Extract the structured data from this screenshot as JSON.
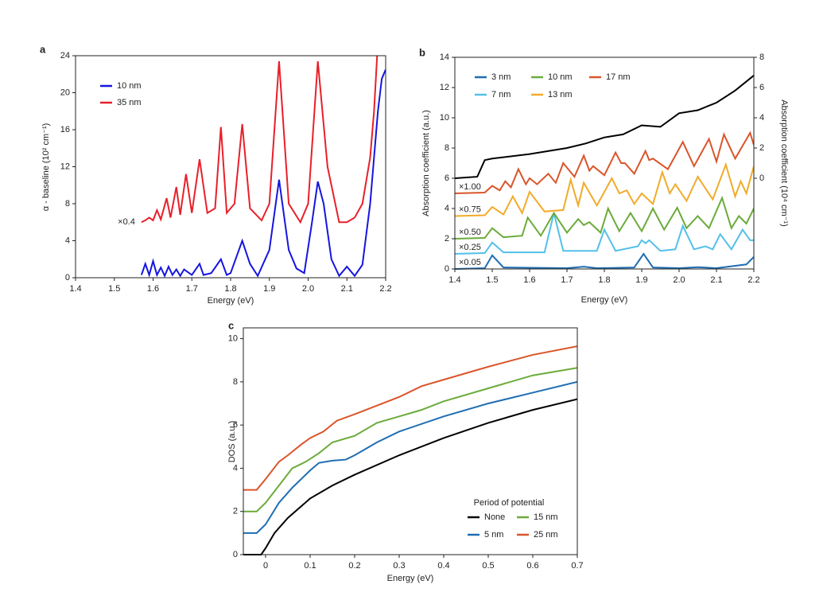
{
  "chart_data": [
    {
      "type": "line",
      "panel": "a",
      "xlabel": "Energy (eV)",
      "ylabel": "α - baseline (10² cm⁻¹)",
      "xlim": [
        1.4,
        2.2
      ],
      "xticks": [
        1.4,
        1.5,
        1.6,
        1.7,
        1.8,
        1.9,
        {
          "value": 2,
          "label": "2.0"
        },
        2.1,
        2.2
      ],
      "ylim": [
        0,
        24
      ],
      "yticks": [
        0,
        4,
        8,
        12,
        16,
        20,
        24
      ],
      "series": [
        {
          "name": "10 nm",
          "color": "#1515e0",
          "x": [
            1.57,
            1.58,
            1.59,
            1.6,
            1.61,
            1.62,
            1.63,
            1.64,
            1.65,
            1.66,
            1.67,
            1.68,
            1.7,
            1.72,
            1.73,
            1.75,
            1.775,
            1.79,
            1.8,
            1.83,
            1.85,
            1.87,
            1.9,
            1.925,
            1.95,
            1.97,
            1.99,
            2.01,
            2.025,
            2.04,
            2.06,
            2.08,
            2.1,
            2.12,
            2.14,
            2.16,
            2.18,
            2.19,
            2.2
          ],
          "values": [
            0.3,
            1.5,
            0.3,
            1.8,
            0.3,
            1.1,
            0.2,
            1.2,
            0.3,
            0.9,
            0.2,
            0.9,
            0.3,
            1.5,
            0.3,
            0.5,
            2,
            0.3,
            0.5,
            4,
            1.5,
            0.2,
            3,
            10.6,
            3,
            1,
            0.5,
            6,
            10.4,
            8,
            2,
            0.2,
            1.2,
            0.2,
            1.4,
            8,
            18,
            21.5,
            22.5
          ]
        },
        {
          "name": "35 nm",
          "color": "#e8202a",
          "scale_label": "×0.4",
          "x": [
            1.57,
            1.58,
            1.59,
            1.6,
            1.61,
            1.62,
            1.635,
            1.645,
            1.66,
            1.67,
            1.685,
            1.7,
            1.72,
            1.74,
            1.76,
            1.775,
            1.79,
            1.81,
            1.83,
            1.85,
            1.88,
            1.9,
            1.925,
            1.95,
            1.98,
            2.0,
            2.025,
            2.05,
            2.08,
            2.1,
            2.12,
            2.14,
            2.16,
            2.17,
            2.178
          ],
          "values": [
            6,
            6.2,
            6.5,
            6.2,
            7.3,
            6.3,
            8.6,
            6.5,
            9.8,
            6.8,
            11.2,
            7,
            12.8,
            7,
            7.5,
            16.3,
            7,
            8,
            16.6,
            7.5,
            6.2,
            8,
            23.4,
            8,
            6,
            8,
            23.4,
            12,
            6,
            6,
            6.5,
            8,
            13,
            18,
            24
          ]
        }
      ]
    },
    {
      "type": "line",
      "panel": "b",
      "xlabel": "Energy (eV)",
      "ylabel": "Absorption coefficient (a.u.)",
      "y2label": "Absorption coefficient (10⁴ cm⁻¹)",
      "xlim": [
        1.4,
        2.2
      ],
      "xticks": [
        1.4,
        1.5,
        1.6,
        1.7,
        1.8,
        1.9,
        {
          "value": 2,
          "label": "2.0"
        },
        2.1,
        2.2
      ],
      "ylim": [
        0,
        14
      ],
      "yticks": [
        0,
        2,
        4,
        6,
        8,
        10,
        12,
        14
      ],
      "y2lim": [
        -6,
        8
      ],
      "y2ticks": [
        0,
        2,
        4,
        6,
        8
      ],
      "series": [
        {
          "color": "#000000",
          "axis": "y2",
          "x": [
            1.4,
            1.46,
            1.48,
            1.5,
            1.6,
            1.7,
            1.75,
            1.8,
            1.85,
            1.9,
            1.95,
            2.0,
            2.05,
            2.1,
            2.15,
            2.2
          ],
          "values": [
            0,
            0.1,
            1.2,
            1.3,
            1.6,
            2.0,
            2.3,
            2.7,
            2.9,
            3.5,
            3.4,
            4.3,
            4.5,
            5.0,
            5.8,
            6.8
          ]
        },
        {
          "name": "3 nm",
          "color": "#1f6db3",
          "scale_label": "×0.05",
          "x": [
            1.4,
            1.48,
            1.5,
            1.53,
            1.7,
            1.745,
            1.78,
            1.88,
            1.905,
            1.93,
            2.0,
            2.05,
            2.1,
            2.18,
            2.2
          ],
          "values": [
            0,
            0.05,
            0.9,
            0.1,
            0.05,
            0.15,
            0.05,
            0.1,
            1.0,
            0.1,
            0.05,
            0.12,
            0.05,
            0.3,
            0.8
          ]
        },
        {
          "name": "7 nm",
          "color": "#52c0ea",
          "scale_label": "×0.25",
          "x": [
            1.4,
            1.48,
            1.5,
            1.53,
            1.64,
            1.665,
            1.69,
            1.78,
            1.8,
            1.83,
            1.89,
            1.9,
            1.91,
            1.92,
            1.95,
            1.99,
            2.01,
            2.04,
            2.07,
            2.09,
            2.11,
            2.14,
            2.17,
            2.19,
            2.2
          ],
          "values": [
            1,
            1.05,
            1.75,
            1.1,
            1.1,
            3.7,
            1.2,
            1.2,
            2.6,
            1.2,
            1.5,
            1.9,
            1.7,
            1.9,
            1.2,
            1.3,
            2.85,
            1.3,
            1.5,
            1.3,
            2.3,
            1.3,
            2.6,
            1.9,
            1.9
          ]
        },
        {
          "name": "10 nm",
          "color": "#6bab3b",
          "scale_label": "×0.50",
          "x": [
            1.4,
            1.48,
            1.5,
            1.53,
            1.58,
            1.595,
            1.63,
            1.665,
            1.7,
            1.73,
            1.745,
            1.76,
            1.79,
            1.81,
            1.84,
            1.87,
            1.9,
            1.93,
            1.96,
            1.995,
            2.02,
            2.05,
            2.08,
            2.115,
            2.14,
            2.16,
            2.18,
            2.2
          ],
          "values": [
            2,
            2.05,
            2.7,
            2.1,
            2.2,
            3.4,
            2.2,
            3.7,
            2.4,
            3.3,
            2.9,
            3.1,
            2.4,
            4.0,
            2.5,
            3.7,
            2.5,
            4.0,
            2.6,
            4.05,
            2.7,
            3.5,
            2.7,
            4.7,
            2.7,
            3.5,
            3.0,
            4.0
          ]
        },
        {
          "name": "13 nm",
          "color": "#f1ab2a",
          "scale_label": "×0.75",
          "x": [
            1.4,
            1.48,
            1.5,
            1.53,
            1.555,
            1.58,
            1.6,
            1.64,
            1.69,
            1.71,
            1.73,
            1.745,
            1.78,
            1.82,
            1.84,
            1.86,
            1.88,
            1.9,
            1.93,
            1.955,
            1.975,
            1.99,
            2.02,
            2.05,
            2.09,
            2.125,
            2.15,
            2.165,
            2.18,
            2.2
          ],
          "values": [
            3.5,
            3.55,
            4.1,
            3.6,
            4.8,
            3.7,
            5.1,
            3.8,
            3.9,
            5.9,
            4.2,
            5.7,
            4.2,
            6.0,
            5.0,
            5.2,
            4.3,
            5.0,
            4.3,
            6.4,
            5.0,
            5.6,
            4.5,
            6.1,
            4.6,
            6.9,
            4.8,
            5.8,
            5.0,
            6.8
          ]
        },
        {
          "name": "17 nm",
          "color": "#da552b",
          "scale_label": "×1.00",
          "x": [
            1.4,
            1.48,
            1.5,
            1.52,
            1.535,
            1.55,
            1.57,
            1.59,
            1.6,
            1.62,
            1.65,
            1.67,
            1.69,
            1.72,
            1.745,
            1.76,
            1.77,
            1.8,
            1.83,
            1.845,
            1.855,
            1.88,
            1.91,
            1.92,
            1.93,
            1.97,
            2.01,
            2.04,
            2.08,
            2.1,
            2.12,
            2.15,
            2.19,
            2.2
          ],
          "values": [
            5,
            5.05,
            5.5,
            5.2,
            5.8,
            5.4,
            6.6,
            5.6,
            6.0,
            5.6,
            6.3,
            5.7,
            7.0,
            6.1,
            7.5,
            6.5,
            6.8,
            6.2,
            7.7,
            7.0,
            7.0,
            6.3,
            7.8,
            7.2,
            7.3,
            6.6,
            8.4,
            6.8,
            8.6,
            7.1,
            8.9,
            7.3,
            9.0,
            8.2
          ]
        }
      ]
    },
    {
      "type": "line",
      "panel": "c",
      "xlabel": "Energy (eV)",
      "ylabel": "DOS (a.u.)",
      "legend_title": "Period of potential",
      "xlim": [
        -0.05,
        0.7
      ],
      "xticks": [
        0,
        0.1,
        0.2,
        0.3,
        0.4,
        0.5,
        0.6,
        0.7
      ],
      "ylim": [
        0,
        10.5
      ],
      "yticks": [
        0,
        2,
        4,
        6,
        8,
        10
      ],
      "series": [
        {
          "name": "None",
          "color": "#000000",
          "x": [
            -0.05,
            -0.01,
            0,
            0.02,
            0.05,
            0.1,
            0.15,
            0.2,
            0.3,
            0.4,
            0.5,
            0.6,
            0.7
          ],
          "values": [
            0,
            0,
            0.3,
            1.0,
            1.7,
            2.6,
            3.2,
            3.7,
            4.6,
            5.4,
            6.1,
            6.7,
            7.2
          ]
        },
        {
          "name": "5 nm",
          "color": "#1f6db3",
          "x": [
            -0.05,
            -0.02,
            0,
            0.03,
            0.06,
            0.1,
            0.12,
            0.15,
            0.18,
            0.2,
            0.25,
            0.3,
            0.4,
            0.5,
            0.6,
            0.7
          ],
          "values": [
            1,
            1,
            1.4,
            2.4,
            3.1,
            3.9,
            4.25,
            4.35,
            4.4,
            4.6,
            5.2,
            5.7,
            6.4,
            7.0,
            7.5,
            8.0
          ]
        },
        {
          "name": "15 nm",
          "color": "#6bab3b",
          "x": [
            -0.05,
            -0.02,
            0,
            0.03,
            0.06,
            0.09,
            0.12,
            0.15,
            0.2,
            0.25,
            0.3,
            0.35,
            0.4,
            0.5,
            0.6,
            0.7
          ],
          "values": [
            2,
            2,
            2.4,
            3.2,
            4.0,
            4.3,
            4.7,
            5.2,
            5.5,
            6.1,
            6.4,
            6.7,
            7.1,
            7.7,
            8.3,
            8.65
          ]
        },
        {
          "name": "25 nm",
          "color": "#da552b",
          "x": [
            -0.05,
            -0.02,
            0,
            0.03,
            0.05,
            0.08,
            0.1,
            0.13,
            0.16,
            0.2,
            0.25,
            0.3,
            0.35,
            0.4,
            0.5,
            0.6,
            0.7
          ],
          "values": [
            3,
            3,
            3.5,
            4.3,
            4.6,
            5.1,
            5.4,
            5.7,
            6.2,
            6.5,
            6.9,
            7.3,
            7.8,
            8.1,
            8.7,
            9.25,
            9.65
          ]
        }
      ]
    }
  ]
}
